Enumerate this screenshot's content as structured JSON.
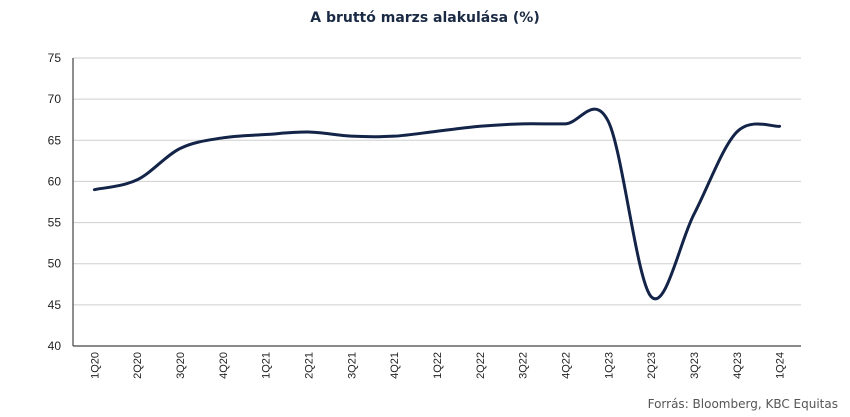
{
  "chart_data": {
    "type": "line",
    "title": "A bruttó marzs alakulása (%)",
    "xlabel": "",
    "ylabel": "",
    "source": "Forrás: Bloomberg, KBC Equitas",
    "categories": [
      "1Q20",
      "2Q20",
      "3Q20",
      "4Q20",
      "1Q21",
      "2Q21",
      "3Q21",
      "4Q21",
      "1Q22",
      "2Q22",
      "3Q22",
      "4Q22",
      "1Q23",
      "2Q23",
      "3Q23",
      "4Q23",
      "1Q24"
    ],
    "series": [
      {
        "values": [
          59.0,
          60.2,
          64.0,
          65.3,
          65.7,
          66.0,
          65.5,
          65.5,
          66.1,
          66.7,
          67.0,
          67.0,
          67.3,
          46.0,
          56.0,
          66.0,
          66.7
        ]
      }
    ],
    "ylim": [
      40,
      75
    ],
    "yticks": [
      40,
      45,
      50,
      55,
      60,
      65,
      70,
      75
    ],
    "grid": true,
    "colors": {
      "line": "#132448",
      "grid": "#cfcfcf"
    }
  }
}
